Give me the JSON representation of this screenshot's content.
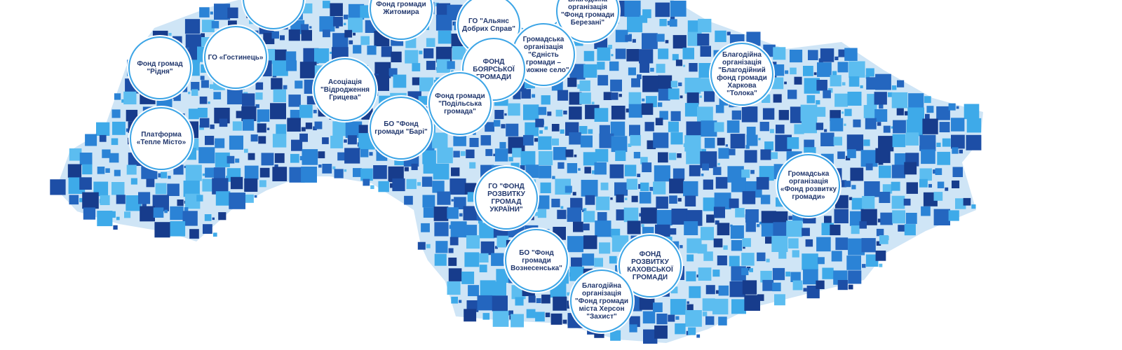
{
  "nodes": [
    {
      "label": "Фонд громади Житомира"
    },
    {
      "label": "Фонд громад \"Рідня\""
    },
    {
      "label": "ГО «Гостинець»"
    },
    {
      "label": "Асоціація \"Відродження Грицева\""
    },
    {
      "label": "Платформа «Тепле Місто»"
    },
    {
      "label": "БО \"Фонд громади \"Барі\""
    },
    {
      "label": "ГО \"Альянс Добрих Справ\""
    },
    {
      "label": "Благодійна організація \"Фонд громади Березані\""
    },
    {
      "label": "Громадська організація \"Єдність громади – заможне село\""
    },
    {
      "label": "ФОНД БОЯРСЬКОЇ ГРОМАДИ"
    },
    {
      "label": "Фонд громади \"Подільська громада\""
    },
    {
      "label": "Благодійна організація \"Благодійний фонд громади Харкова \"Толока\""
    },
    {
      "label": "Громадська організація «Фонд розвитку громади»"
    },
    {
      "label": "ГО \"ФОНД РОЗВИТКУ ГРОМАД УКРАЇНИ\""
    },
    {
      "label": "БО \"Фонд громади Вознесенська\""
    },
    {
      "label": "ФОНД РОЗВИТКУ КАХОВСЬКОЇ ГРОМАДИ"
    },
    {
      "label": "Благодійна організація \"Фонд громади міста Херсон \"Захист\""
    }
  ]
}
